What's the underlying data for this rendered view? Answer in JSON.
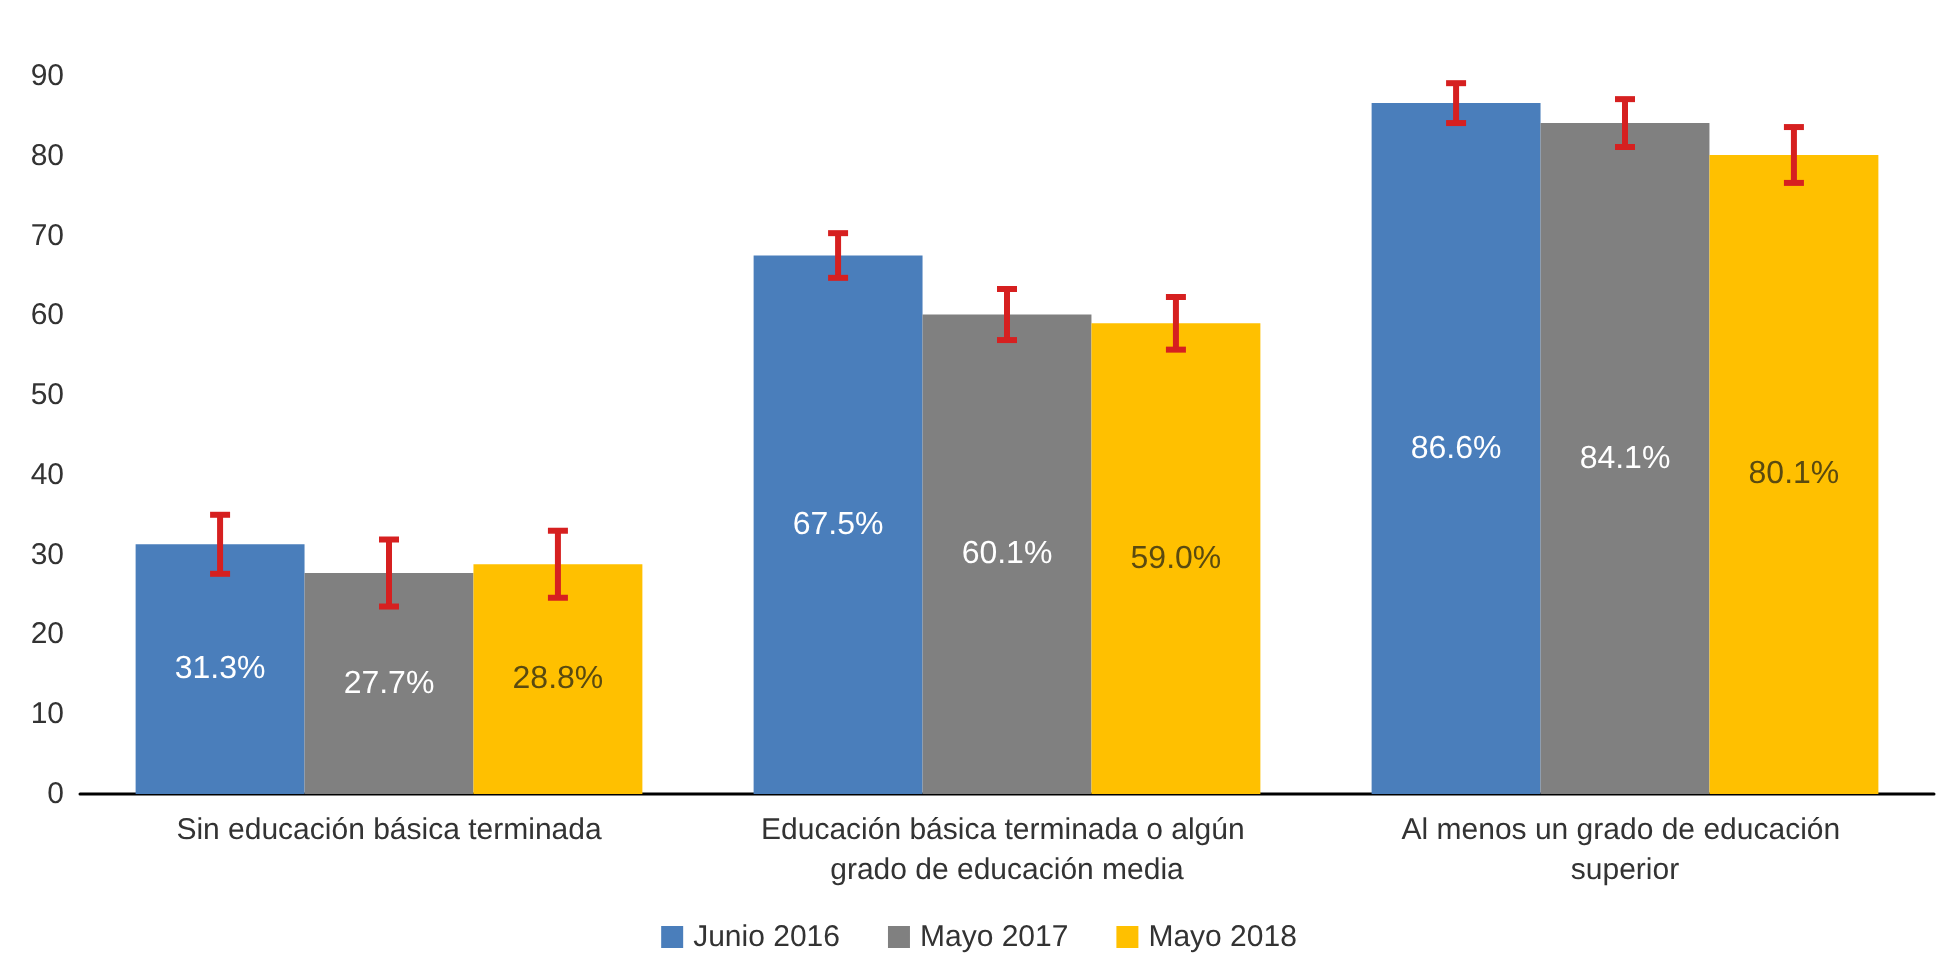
{
  "chart_data": {
    "type": "bar",
    "categories": [
      "Sin educación básica terminada",
      "Educación básica terminada o algún grado de educación media",
      "Al menos un grado de educación superior"
    ],
    "series": [
      {
        "name": "Junio 2016",
        "color": "#4a7ebb",
        "values": [
          31.3,
          67.5,
          86.6
        ],
        "value_labels": [
          "31.3%",
          "67.5%",
          "86.6%"
        ],
        "errors": [
          3.7,
          2.8,
          2.5
        ]
      },
      {
        "name": "Mayo 2017",
        "color": "#808080",
        "values": [
          27.7,
          60.1,
          84.1
        ],
        "value_labels": [
          "27.7%",
          "60.1%",
          "84.1%"
        ],
        "errors": [
          4.2,
          3.2,
          3.0
        ]
      },
      {
        "name": "Mayo 2018",
        "color": "#ffc000",
        "values": [
          28.8,
          59.0,
          80.1
        ],
        "value_labels": [
          "28.8%",
          "59.0%",
          "80.1%"
        ],
        "errors": [
          4.2,
          3.3,
          3.5
        ]
      }
    ],
    "ylim": [
      0,
      90
    ],
    "yticks": [
      0,
      10,
      20,
      30,
      40,
      50,
      60,
      70,
      80,
      90
    ],
    "grid": false,
    "legend": "bottom"
  }
}
